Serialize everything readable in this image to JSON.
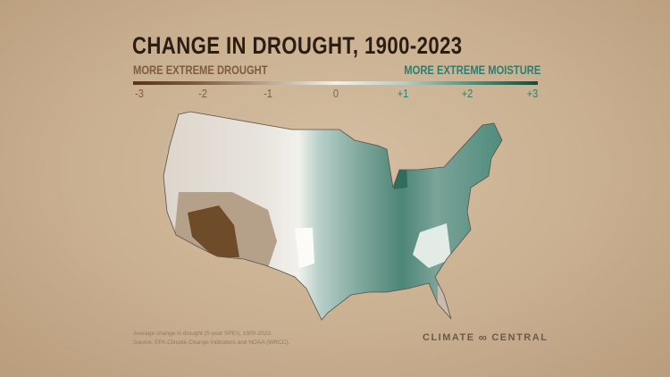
{
  "title": "CHANGE IN DROUGHT, 1900-2023",
  "legend": {
    "left_label": "MORE EXTREME DROUGHT",
    "right_label": "MORE EXTREME MOISTURE",
    "ticks": [
      "-3",
      "-2",
      "-1",
      "0",
      "+1",
      "+2",
      "+3"
    ],
    "scale_min": -3,
    "scale_max": 3,
    "colors": {
      "drought": "#5a3414",
      "neutral": "#f2f0ea",
      "moisture": "#154a3e"
    }
  },
  "note": {
    "line1": "Average change in drought (5-year SPEI), 1900-2023.",
    "line2": "Source: EPA Climate Change Indicators and NOAA (WRCC)."
  },
  "logo": {
    "left": "CLIMATE",
    "right": "CENTRAL"
  }
}
